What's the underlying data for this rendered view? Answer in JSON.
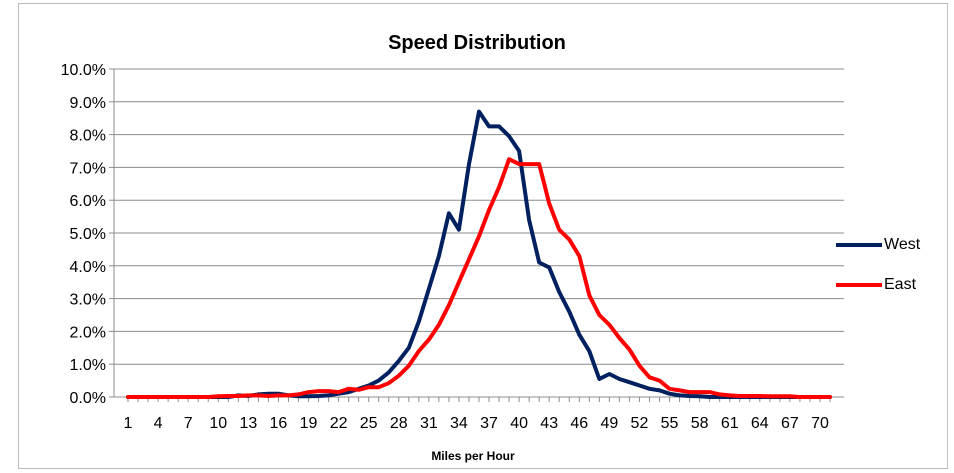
{
  "chart_data": {
    "type": "line",
    "title": "Speed Distribution",
    "xlabel": "Miles per Hour",
    "ylabel": "",
    "ylim": [
      0,
      10
    ],
    "y_tick_labels": [
      "0.0%",
      "1.0%",
      "2.0%",
      "3.0%",
      "4.0%",
      "5.0%",
      "6.0%",
      "7.0%",
      "8.0%",
      "9.0%",
      "10.0%"
    ],
    "x_tick_labels": [
      "1",
      "4",
      "7",
      "10",
      "13",
      "16",
      "19",
      "22",
      "25",
      "28",
      "31",
      "34",
      "37",
      "40",
      "43",
      "46",
      "49",
      "52",
      "55",
      "58",
      "61",
      "64",
      "67",
      "70"
    ],
    "grid": "horizontal",
    "legend_position": "right",
    "x": [
      1,
      2,
      3,
      4,
      5,
      6,
      7,
      8,
      9,
      10,
      11,
      12,
      13,
      14,
      15,
      16,
      17,
      18,
      19,
      20,
      21,
      22,
      23,
      24,
      25,
      26,
      27,
      28,
      29,
      30,
      31,
      32,
      33,
      34,
      35,
      36,
      37,
      38,
      39,
      40,
      41,
      42,
      43,
      44,
      45,
      46,
      47,
      48,
      49,
      50,
      51,
      52,
      53,
      54,
      55,
      56,
      57,
      58,
      59,
      60,
      61,
      62,
      63,
      64,
      65,
      66,
      67,
      68,
      69,
      70,
      71
    ],
    "series": [
      {
        "name": "West",
        "color": "#002060",
        "values": [
          0,
          0,
          0,
          0,
          0,
          0,
          0,
          0,
          0,
          0,
          0,
          0.05,
          0.03,
          0.08,
          0.1,
          0.1,
          0.05,
          0.02,
          0.02,
          0.03,
          0.05,
          0.1,
          0.15,
          0.25,
          0.35,
          0.5,
          0.75,
          1.1,
          1.5,
          2.3,
          3.3,
          4.3,
          5.6,
          5.1,
          7.1,
          8.7,
          8.25,
          8.25,
          7.95,
          7.5,
          5.4,
          4.1,
          3.95,
          3.2,
          2.6,
          1.9,
          1.4,
          0.55,
          0.7,
          0.55,
          0.45,
          0.35,
          0.25,
          0.2,
          0.1,
          0.05,
          0.03,
          0.02,
          0,
          0,
          0,
          0,
          0,
          0,
          0,
          0,
          0,
          0,
          0,
          0,
          0
        ]
      },
      {
        "name": "East",
        "color": "#ff0000",
        "values": [
          0,
          0,
          0,
          0,
          0,
          0,
          0,
          0,
          0,
          0.02,
          0.03,
          0.03,
          0.05,
          0.05,
          0.03,
          0.05,
          0.05,
          0.08,
          0.15,
          0.18,
          0.18,
          0.15,
          0.25,
          0.22,
          0.3,
          0.3,
          0.42,
          0.65,
          0.95,
          1.4,
          1.75,
          2.2,
          2.8,
          3.5,
          4.2,
          4.9,
          5.7,
          6.4,
          7.25,
          7.1,
          7.1,
          7.1,
          5.9,
          5.1,
          4.8,
          4.3,
          3.1,
          2.5,
          2.2,
          1.8,
          1.45,
          0.95,
          0.6,
          0.5,
          0.25,
          0.2,
          0.15,
          0.15,
          0.15,
          0.08,
          0.05,
          0.03,
          0.03,
          0.03,
          0.02,
          0.02,
          0.02,
          0,
          0,
          0,
          0
        ]
      }
    ]
  }
}
